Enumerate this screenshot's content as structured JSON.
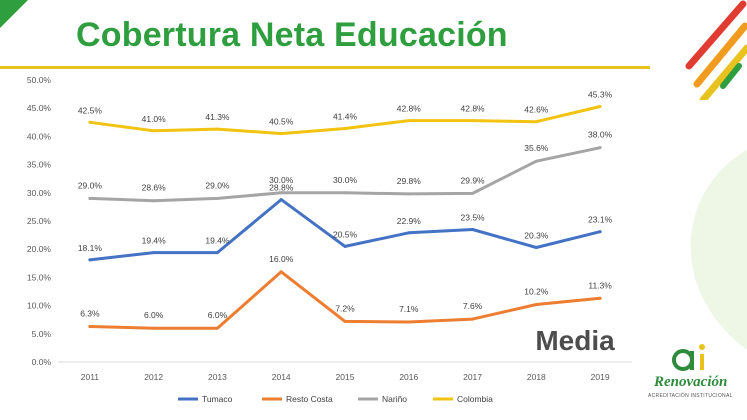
{
  "slide": {
    "title": "Cobertura Neta Educación",
    "level_label": "Media"
  },
  "logo": {
    "name": "Renovación",
    "tagline": "ACREDITACIÓN INSTITUCIONAL"
  },
  "colors": {
    "title_green": "#2e9e3e",
    "accent_yellow": "#e8c21e",
    "accent_red": "#e03c31",
    "accent_orange": "#f29c1f"
  },
  "chart_data": {
    "type": "line",
    "categories": [
      "2011",
      "2012",
      "2013",
      "2014",
      "2015",
      "2016",
      "2017",
      "2018",
      "2019"
    ],
    "series": [
      {
        "name": "Tumaco",
        "color": "#4472c4",
        "values": [
          18.1,
          19.4,
          19.4,
          28.8,
          20.5,
          22.9,
          23.5,
          20.3,
          23.1
        ],
        "labels": [
          "18.1%",
          "19.4%",
          "19.4%",
          "28.8%",
          "20.5%",
          "22.9%",
          "23.5%",
          "20.3%",
          "23.1%"
        ]
      },
      {
        "name": "Resto Costa",
        "color": "#ed7d31",
        "values": [
          6.3,
          6.0,
          6.0,
          16.0,
          7.2,
          7.1,
          7.6,
          10.2,
          11.3
        ],
        "labels": [
          "6.3%",
          "6.0%",
          "6.0%",
          "16.0%",
          "7.2%",
          "7.1%",
          "7.6%",
          "10.2%",
          "11.3%"
        ]
      },
      {
        "name": "Nariño",
        "color": "#a5a5a5",
        "values": [
          29.0,
          28.6,
          29.0,
          30.0,
          30.0,
          29.8,
          29.9,
          35.6,
          38.0
        ],
        "labels": [
          "29.0%",
          "28.6%",
          "29.0%",
          "30.0%",
          "30.0%",
          "29.8%",
          "29.9%",
          "35.6%",
          "38.0%"
        ]
      },
      {
        "name": "Colombia",
        "color": "#f2c311",
        "values": [
          42.5,
          41.0,
          41.3,
          40.5,
          41.4,
          42.8,
          42.8,
          42.6,
          45.3
        ],
        "labels": [
          "42.5%",
          "41.0%",
          "41.3%",
          "40.5%",
          "41.4%",
          "42.8%",
          "42.8%",
          "42.6%",
          "45.3%"
        ]
      }
    ],
    "ylim": [
      0,
      50
    ],
    "yticks": [
      "0.0%",
      "5.0%",
      "10.0%",
      "15.0%",
      "20.0%",
      "25.0%",
      "30.0%",
      "35.0%",
      "40.0%",
      "45.0%",
      "50.0%"
    ],
    "legend_position": "bottom",
    "grid": false
  }
}
